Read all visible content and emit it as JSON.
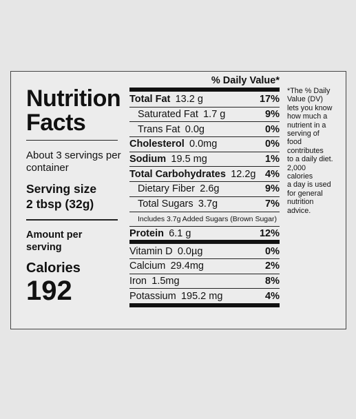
{
  "title": "Nutrition Facts",
  "servings": "About 3 servings per container",
  "serving_size": {
    "label": "Serving size",
    "value": "2 tbsp (32g)"
  },
  "amount_per_serving": "Amount per serving",
  "calories": {
    "label": "Calories",
    "value": "192"
  },
  "dv_header": "% Daily Value*",
  "rows": [
    {
      "name": "Total Fat",
      "amount": "13.2 g",
      "dv": "17%"
    },
    {
      "name": "Saturated Fat",
      "amount": "1.7 g",
      "dv": "9%"
    },
    {
      "name": "Trans Fat",
      "amount": "0.0g",
      "dv": "0%"
    },
    {
      "name": "Cholesterol",
      "amount": "0.0mg",
      "dv": "0%"
    },
    {
      "name": "Sodium",
      "amount": "19.5 mg",
      "dv": "1%"
    },
    {
      "name": "Total Carbohydrates",
      "amount": "12.2g",
      "dv": "4%"
    },
    {
      "name": "Dietary Fiber",
      "amount": "2.6g",
      "dv": "9%"
    },
    {
      "name": "Total Sugars",
      "amount": "3.7g",
      "dv": "7%"
    },
    {
      "name": "Includes 3.7g Added Sugars (Brown Sugar)"
    },
    {
      "name": "Protein",
      "amount": "6.1 g",
      "dv": "12%"
    },
    {
      "name": "Vitamin D",
      "amount": "0.0µg",
      "dv": "0%"
    },
    {
      "name": "Calcium",
      "amount": "29.4mg",
      "dv": "2%"
    },
    {
      "name": "Iron",
      "amount": "1.5mg",
      "dv": "8%"
    },
    {
      "name": "Potassium",
      "amount": "195.2 mg",
      "dv": "4%"
    }
  ],
  "note": [
    "*The % Daily",
    "Value (DV)",
    "lets you know",
    "how much a",
    "nutrient in a",
    "serving of",
    "food",
    "contributes",
    "to a daily diet.",
    "2,000",
    "calories",
    "a day is used",
    "for general",
    "nutrition",
    "advice."
  ]
}
